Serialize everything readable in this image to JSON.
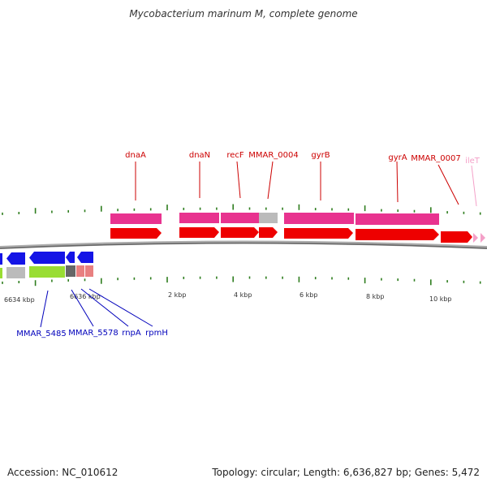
{
  "title": "Mycobacterium marinum M, complete genome",
  "footer": {
    "accession": "Accession: NC_010612",
    "summary": "Topology: circular; Length: 6,636,827 bp; Genes: 5,472"
  },
  "colors": {
    "forward_label": "#cc0000",
    "reverse_label": "#0000bb",
    "forward_gene": "#ee0000",
    "forward_product": "#e8338f",
    "reverse_gene": "#1414e6",
    "reverse_product": "#99dd33",
    "backbone": "#888888",
    "tick": "#2e7d1e",
    "trna": "#f4a0c8"
  },
  "forward_labels": [
    {
      "name": "dnaA"
    },
    {
      "name": "dnaN"
    },
    {
      "name": "recF"
    },
    {
      "name": "MMAR_0004"
    },
    {
      "name": "gyrB"
    },
    {
      "name": "gyrA"
    },
    {
      "name": "MMAR_0007"
    },
    {
      "name": "ileT"
    }
  ],
  "reverse_labels": [
    {
      "name": "MMAR_5485"
    },
    {
      "name": "MMAR_5578"
    },
    {
      "name": "rnpA"
    },
    {
      "name": "rpmH"
    }
  ],
  "kbp_labels": [
    "6634 kbp",
    "6636 kbp",
    "2 kbp",
    "4 kbp",
    "6 kbp",
    "8 kbp",
    "10 kbp"
  ]
}
